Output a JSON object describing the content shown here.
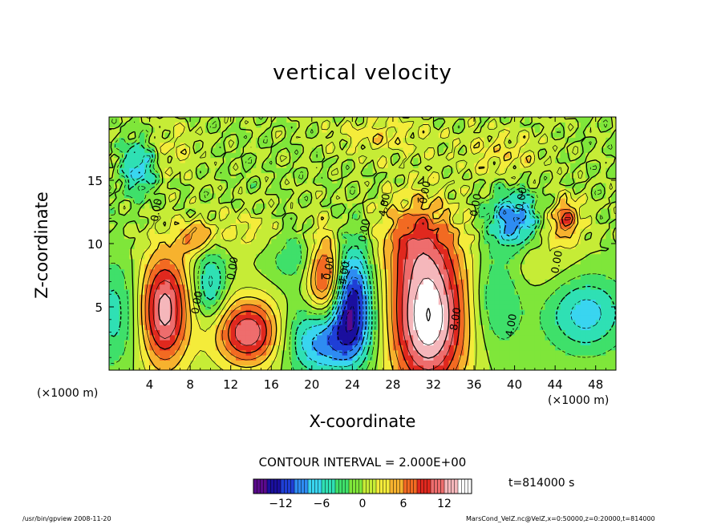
{
  "title": "vertical velocity",
  "footer": {
    "left": "/usr/bin/gpview   2008-11-20",
    "right": "MarsCond_VelZ.nc@VelZ,x=0:50000,z=0:20000,t=814000"
  },
  "time_label": "t=814000 s",
  "contour_note": "CONTOUR INTERVAL = 2.000E+00",
  "chart_data": {
    "type": "heatmap",
    "title": "vertical velocity",
    "xlabel": "X-coordinate",
    "ylabel": "Z-coordinate",
    "x_unit": "(×1000 m)",
    "y_unit": "",
    "xlim": [
      0,
      50
    ],
    "ylim": [
      0,
      20
    ],
    "x_ticks": [
      4,
      8,
      12,
      16,
      20,
      24,
      28,
      32,
      36,
      40,
      44,
      48
    ],
    "y_ticks": [
      5,
      10,
      15
    ],
    "contour_interval": 2.0,
    "colorbar": {
      "min": -16,
      "max": 16,
      "ticks": [
        -12,
        -6,
        0,
        6,
        12
      ],
      "colors": [
        "#5a0a8c",
        "#1a0f9e",
        "#1f3fd6",
        "#2e8cf2",
        "#39d5f0",
        "#2fe0b4",
        "#3fe06a",
        "#7fe63a",
        "#c6ec36",
        "#f4ec3a",
        "#f7b22e",
        "#f26a22",
        "#e0281e",
        "#ee6d6d",
        "#f5b7bb",
        "#ffffff"
      ]
    },
    "contour_labels": [
      {
        "x": 5.0,
        "z": 12.6,
        "text": "0.00"
      },
      {
        "x": 12.5,
        "z": 8.0,
        "text": "0.00"
      },
      {
        "x": 9.0,
        "z": 5.3,
        "text": "0.00"
      },
      {
        "x": 22.0,
        "z": 8.0,
        "text": "0.00"
      },
      {
        "x": 23.5,
        "z": 7.5,
        "text": "-4.00"
      },
      {
        "x": 25.5,
        "z": 11.0,
        "text": "0.00"
      },
      {
        "x": 27.5,
        "z": 13.0,
        "text": "4.00"
      },
      {
        "x": 31.5,
        "z": 14.0,
        "text": "0.00"
      },
      {
        "x": 34.5,
        "z": 4.0,
        "text": "8.00"
      },
      {
        "x": 36.5,
        "z": 13.0,
        "text": "0.00"
      },
      {
        "x": 41.0,
        "z": 13.5,
        "text": "0.00"
      },
      {
        "x": 44.5,
        "z": 8.5,
        "text": "0.00"
      },
      {
        "x": 40.0,
        "z": 3.5,
        "text": "4.00"
      }
    ],
    "features": [
      {
        "x": 5.5,
        "z": 4.8,
        "sx": 1.7,
        "sz": 3.2,
        "value": 13
      },
      {
        "x": 13.8,
        "z": 3.0,
        "sx": 2.4,
        "sz": 1.9,
        "value": 12
      },
      {
        "x": 21.3,
        "z": 7.4,
        "sx": 1.3,
        "sz": 2.5,
        "value": 11
      },
      {
        "x": 31.5,
        "z": 4.2,
        "sx": 2.7,
        "sz": 4.3,
        "value": 16
      },
      {
        "x": 30.0,
        "z": 10.5,
        "sx": 2.6,
        "sz": 2.3,
        "value": 5
      },
      {
        "x": 21.2,
        "z": 2.5,
        "sx": 2.8,
        "sz": 2.0,
        "value": -10
      },
      {
        "x": 24.0,
        "z": 5.8,
        "sx": 1.4,
        "sz": 3.0,
        "value": -13
      },
      {
        "x": 10.0,
        "z": 6.8,
        "sx": 1.1,
        "sz": 2.0,
        "value": -7
      },
      {
        "x": 3.0,
        "z": 16.2,
        "sx": 1.2,
        "sz": 1.5,
        "value": -8
      },
      {
        "x": 40.0,
        "z": 11.8,
        "sx": 1.8,
        "sz": 1.6,
        "value": -10
      },
      {
        "x": 38.3,
        "z": 6.3,
        "sx": 1.8,
        "sz": 3.2,
        "value": -5
      },
      {
        "x": 47.0,
        "z": 4.5,
        "sx": 2.8,
        "sz": 2.2,
        "value": -7
      },
      {
        "x": 0.5,
        "z": 4.5,
        "sx": 1.6,
        "sz": 3.0,
        "value": -5
      },
      {
        "x": 45.0,
        "z": 12.0,
        "sx": 1.1,
        "sz": 1.1,
        "value": 8
      },
      {
        "x": 8.5,
        "z": 10.5,
        "sx": 1.2,
        "sz": 0.9,
        "value": 6
      },
      {
        "x": 18.5,
        "z": 9.0,
        "sx": 2.0,
        "sz": 1.5,
        "value": -4
      },
      {
        "x": 41.5,
        "z": 9.0,
        "sx": 3.5,
        "sz": 2.0,
        "value": 3
      },
      {
        "x": 13.0,
        "z": 11.0,
        "sx": 3.0,
        "sz": 1.2,
        "value": 2.5
      },
      {
        "x": 39.0,
        "z": 17.0,
        "sx": 3.0,
        "sz": 1.5,
        "value": 3
      },
      {
        "x": 27.0,
        "z": 18.5,
        "sx": 3.5,
        "sz": 1.2,
        "value": 3
      },
      {
        "x": 6.0,
        "z": 17.5,
        "sx": 2.0,
        "sz": 1.5,
        "value": 2.5
      }
    ]
  }
}
